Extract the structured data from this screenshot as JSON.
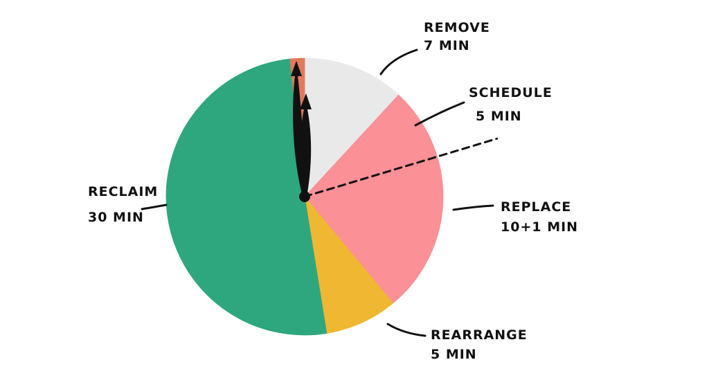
{
  "chart_data": {
    "type": "pie",
    "slices": [
      {
        "name": "REMOVE",
        "value_text": "7 MIN",
        "value": 7,
        "color": "#e9e9e9"
      },
      {
        "name": "SCHEDULE",
        "value_text": "5 MIN",
        "value": 5,
        "color": "#fb9096"
      },
      {
        "name": "REPLACE",
        "value_text": "10+1 MIN",
        "value": 11,
        "color": "#fb9096"
      },
      {
        "name": "REARRANGE",
        "value_text": "5 MIN",
        "value": 5,
        "color": "#f0b733"
      },
      {
        "name": "RECLAIM",
        "value_text": "30 MIN",
        "value": 30,
        "color": "#2ea77f"
      },
      {
        "name": "",
        "value_text": "",
        "value": 1,
        "color": "#e07a5c"
      }
    ],
    "legend": "none",
    "start_angle": "12 o'clock",
    "direction": "clockwise",
    "center_dot_color": "#111111",
    "clock_hands_color": "#111111",
    "dashed_divider": "between SCHEDULE and REPLACE"
  }
}
